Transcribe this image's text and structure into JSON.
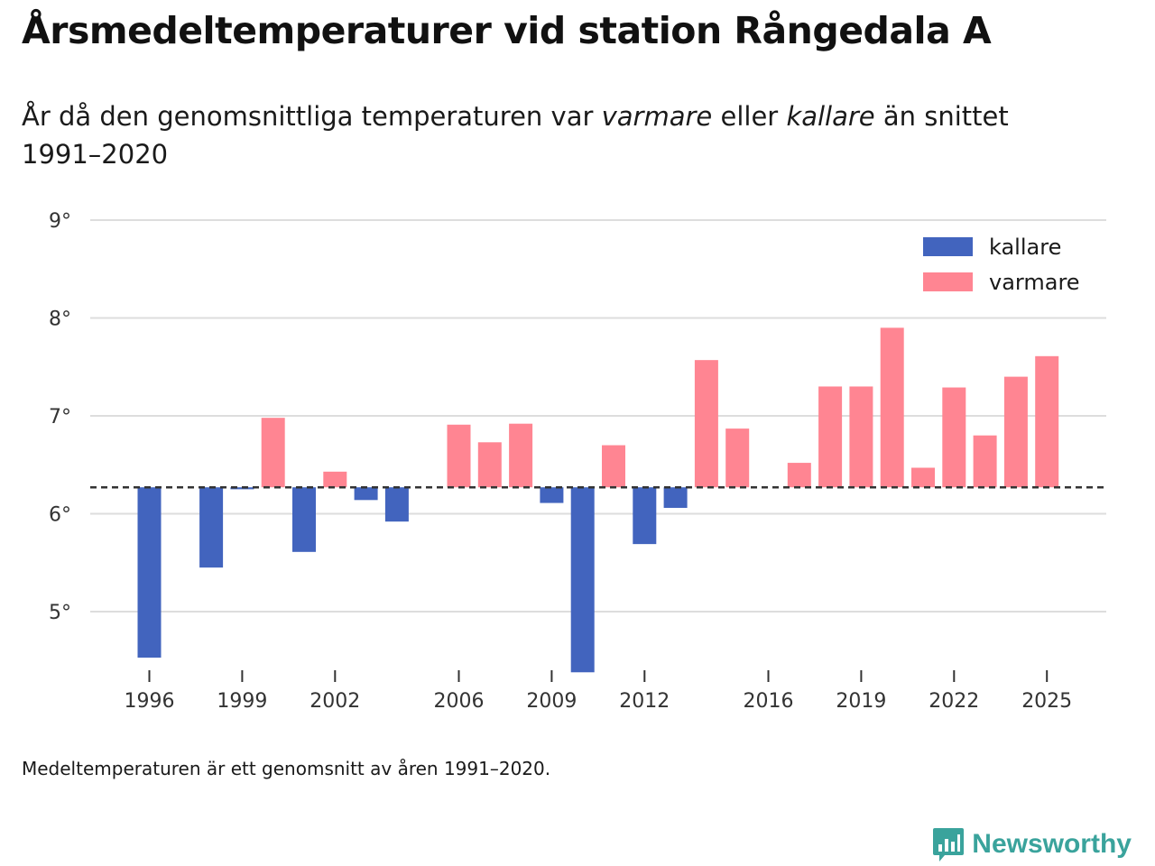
{
  "header": {
    "title": "Årsmedeltemperaturer vid station Rångedala A",
    "subtitle_pre": "År då den genomsnittliga temperaturen var ",
    "subtitle_warm": "varmare",
    "subtitle_mid": " eller ",
    "subtitle_cold": "kallare",
    "subtitle_post": " än snittet 1991–2020"
  },
  "footnote": "Medeltemperaturen är ett genomsnitt av åren 1991–2020.",
  "brand": {
    "label": "Newsworthy",
    "icon": "newsworthy-chart-icon"
  },
  "colors": {
    "cold": "#4264be",
    "warm": "#ff8592",
    "grid": "#dddddd",
    "baseline": "#333333",
    "brand": "#3aa39c"
  },
  "chart_data": {
    "type": "bar",
    "title": "Årsmedeltemperaturer vid station Rångedala A",
    "xlabel": "",
    "ylabel": "",
    "baseline": 6.27,
    "ylim": [
      4.4,
      9.0
    ],
    "y_ticks": [
      5,
      6,
      7,
      8,
      9
    ],
    "y_tick_labels": [
      "5°",
      "6°",
      "7°",
      "8°",
      "9°"
    ],
    "x_ticks": [
      1996,
      1999,
      2002,
      2006,
      2009,
      2012,
      2016,
      2019,
      2022,
      2025
    ],
    "x_tick_labels": [
      "1996",
      "1999",
      "2002",
      "2006",
      "2009",
      "2012",
      "2016",
      "2019",
      "2022",
      "2025"
    ],
    "legend": [
      {
        "name": "kallare",
        "color": "#4264be"
      },
      {
        "name": "varmare",
        "color": "#ff8592"
      }
    ],
    "legend_position": "top-right",
    "years": [
      1996,
      1998,
      1999,
      2000,
      2001,
      2002,
      2003,
      2004,
      2006,
      2007,
      2008,
      2009,
      2010,
      2011,
      2012,
      2013,
      2014,
      2015,
      2017,
      2018,
      2019,
      2020,
      2021,
      2022,
      2023,
      2024,
      2025
    ],
    "values": [
      4.53,
      5.45,
      6.25,
      6.98,
      5.61,
      6.43,
      6.14,
      5.92,
      6.91,
      6.73,
      6.92,
      6.11,
      4.38,
      6.7,
      5.69,
      6.06,
      7.57,
      6.87,
      6.52,
      7.3,
      7.3,
      7.9,
      6.47,
      7.29,
      6.8,
      7.4,
      7.61
    ]
  }
}
